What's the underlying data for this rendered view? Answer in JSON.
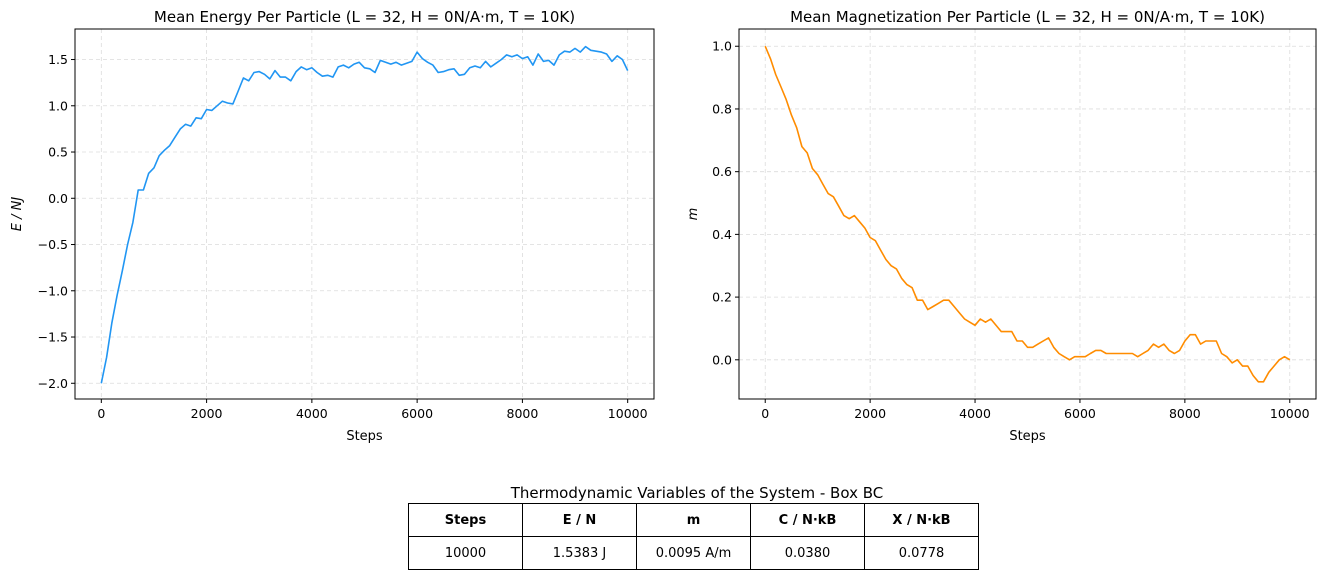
{
  "chart_data": [
    {
      "type": "line",
      "title": "Mean Energy Per Particle (L = 32, H = 0N/A·m, T = 10K)",
      "xlabel": "Steps",
      "ylabel": "E / NJ",
      "xlim": [
        -500,
        10500
      ],
      "ylim": [
        -2.17,
        1.83
      ],
      "xticks": [
        0,
        2000,
        4000,
        6000,
        8000,
        10000
      ],
      "xtick_labels": [
        "0",
        "2000",
        "4000",
        "6000",
        "8000",
        "10000"
      ],
      "yticks": [
        -2.0,
        -1.5,
        -1.0,
        -0.5,
        0.0,
        0.5,
        1.0,
        1.5
      ],
      "ytick_labels": [
        "−2.0",
        "−1.5",
        "−1.0",
        "−0.5",
        "0.0",
        "0.5",
        "1.0",
        "1.5"
      ],
      "grid": true,
      "color": "#2196f3",
      "series": [
        {
          "x": [
            0,
            100,
            200,
            300,
            400,
            500,
            600,
            700,
            800,
            900,
            1000,
            1100,
            1200,
            1300,
            1400,
            1500,
            1600,
            1700,
            1800,
            1900,
            2000,
            2100,
            2200,
            2300,
            2400,
            2500,
            2600,
            2700,
            2800,
            2900,
            3000,
            3100,
            3200,
            3300,
            3400,
            3500,
            3600,
            3700,
            3800,
            3900,
            4000,
            4100,
            4200,
            4300,
            4400,
            4500,
            4600,
            4700,
            4800,
            4900,
            5000,
            5100,
            5200,
            5300,
            5400,
            5500,
            5600,
            5700,
            5800,
            5900,
            6000,
            6100,
            6200,
            6300,
            6400,
            6500,
            6600,
            6700,
            6800,
            6900,
            7000,
            7100,
            7200,
            7300,
            7400,
            7500,
            7600,
            7700,
            7800,
            7900,
            8000,
            8100,
            8200,
            8300,
            8400,
            8500,
            8600,
            8700,
            8800,
            8900,
            9000,
            9100,
            9200,
            9300,
            9400,
            9500,
            9600,
            9700,
            9800,
            9900,
            10000
          ],
          "y": [
            -2.0,
            -1.72,
            -1.35,
            -1.05,
            -0.78,
            -0.5,
            -0.26,
            0.09,
            0.09,
            0.27,
            0.33,
            0.46,
            0.52,
            0.57,
            0.66,
            0.75,
            0.8,
            0.78,
            0.87,
            0.86,
            0.96,
            0.95,
            1.0,
            1.05,
            1.03,
            1.02,
            1.16,
            1.3,
            1.27,
            1.36,
            1.37,
            1.34,
            1.29,
            1.38,
            1.31,
            1.31,
            1.27,
            1.37,
            1.42,
            1.39,
            1.41,
            1.36,
            1.32,
            1.33,
            1.31,
            1.42,
            1.44,
            1.41,
            1.45,
            1.47,
            1.41,
            1.4,
            1.36,
            1.49,
            1.47,
            1.45,
            1.47,
            1.44,
            1.46,
            1.48,
            1.58,
            1.51,
            1.47,
            1.44,
            1.36,
            1.37,
            1.39,
            1.4,
            1.33,
            1.34,
            1.41,
            1.43,
            1.41,
            1.48,
            1.42,
            1.46,
            1.5,
            1.55,
            1.53,
            1.55,
            1.51,
            1.53,
            1.44,
            1.56,
            1.48,
            1.49,
            1.44,
            1.55,
            1.59,
            1.58,
            1.62,
            1.58,
            1.64,
            1.6,
            1.59,
            1.58,
            1.56,
            1.48,
            1.54,
            1.5,
            1.38
          ]
        }
      ]
    },
    {
      "type": "line",
      "title": "Mean Magnetization Per Particle (L = 32, H = 0N/A·m, T = 10K)",
      "xlabel": "Steps",
      "ylabel": "m",
      "xlim": [
        -500,
        10500
      ],
      "ylim": [
        -0.125,
        1.055
      ],
      "xticks": [
        0,
        2000,
        4000,
        6000,
        8000,
        10000
      ],
      "xtick_labels": [
        "0",
        "2000",
        "4000",
        "6000",
        "8000",
        "10000"
      ],
      "yticks": [
        0.0,
        0.2,
        0.4,
        0.6,
        0.8,
        1.0
      ],
      "ytick_labels": [
        "0.0",
        "0.2",
        "0.4",
        "0.6",
        "0.8",
        "1.0"
      ],
      "grid": true,
      "color": "#ff8c00",
      "series": [
        {
          "x": [
            0,
            100,
            200,
            300,
            400,
            500,
            600,
            700,
            800,
            900,
            1000,
            1100,
            1200,
            1300,
            1400,
            1500,
            1600,
            1700,
            1800,
            1900,
            2000,
            2100,
            2200,
            2300,
            2400,
            2500,
            2600,
            2700,
            2800,
            2900,
            3000,
            3100,
            3200,
            3300,
            3400,
            3500,
            3600,
            3700,
            3800,
            3900,
            4000,
            4100,
            4200,
            4300,
            4400,
            4500,
            4600,
            4700,
            4800,
            4900,
            5000,
            5100,
            5200,
            5300,
            5400,
            5500,
            5600,
            5700,
            5800,
            5900,
            6000,
            6100,
            6200,
            6300,
            6400,
            6500,
            6600,
            6700,
            6800,
            6900,
            7000,
            7100,
            7200,
            7300,
            7400,
            7500,
            7600,
            7700,
            7800,
            7900,
            8000,
            8100,
            8200,
            8300,
            8400,
            8500,
            8600,
            8700,
            8800,
            8900,
            9000,
            9100,
            9200,
            9300,
            9400,
            9500,
            9600,
            9700,
            9800,
            9900,
            10000
          ],
          "y": [
            1.0,
            0.96,
            0.91,
            0.87,
            0.83,
            0.78,
            0.74,
            0.68,
            0.66,
            0.61,
            0.59,
            0.56,
            0.53,
            0.52,
            0.49,
            0.46,
            0.45,
            0.46,
            0.44,
            0.42,
            0.39,
            0.38,
            0.35,
            0.32,
            0.3,
            0.29,
            0.26,
            0.24,
            0.23,
            0.19,
            0.19,
            0.16,
            0.17,
            0.18,
            0.19,
            0.19,
            0.17,
            0.15,
            0.13,
            0.12,
            0.11,
            0.13,
            0.12,
            0.13,
            0.11,
            0.09,
            0.09,
            0.09,
            0.06,
            0.06,
            0.04,
            0.04,
            0.05,
            0.06,
            0.07,
            0.04,
            0.02,
            0.01,
            0.0,
            0.01,
            0.01,
            0.01,
            0.02,
            0.03,
            0.03,
            0.02,
            0.02,
            0.02,
            0.02,
            0.02,
            0.02,
            0.01,
            0.02,
            0.03,
            0.05,
            0.04,
            0.05,
            0.03,
            0.02,
            0.03,
            0.06,
            0.08,
            0.08,
            0.05,
            0.06,
            0.06,
            0.06,
            0.02,
            0.01,
            -0.01,
            0.0,
            -0.02,
            -0.02,
            -0.05,
            -0.07,
            -0.07,
            -0.04,
            -0.02,
            0.0,
            0.01,
            0.0
          ]
        }
      ]
    }
  ],
  "table": {
    "title": "Thermodynamic Variables of the System - Box BC",
    "headers": [
      "Steps",
      "E / N",
      "m",
      "C / N·kB",
      "X / N·kB"
    ],
    "row": [
      "10000",
      "1.5383 J",
      "0.0095 A/m",
      "0.0380",
      "0.0778"
    ]
  }
}
